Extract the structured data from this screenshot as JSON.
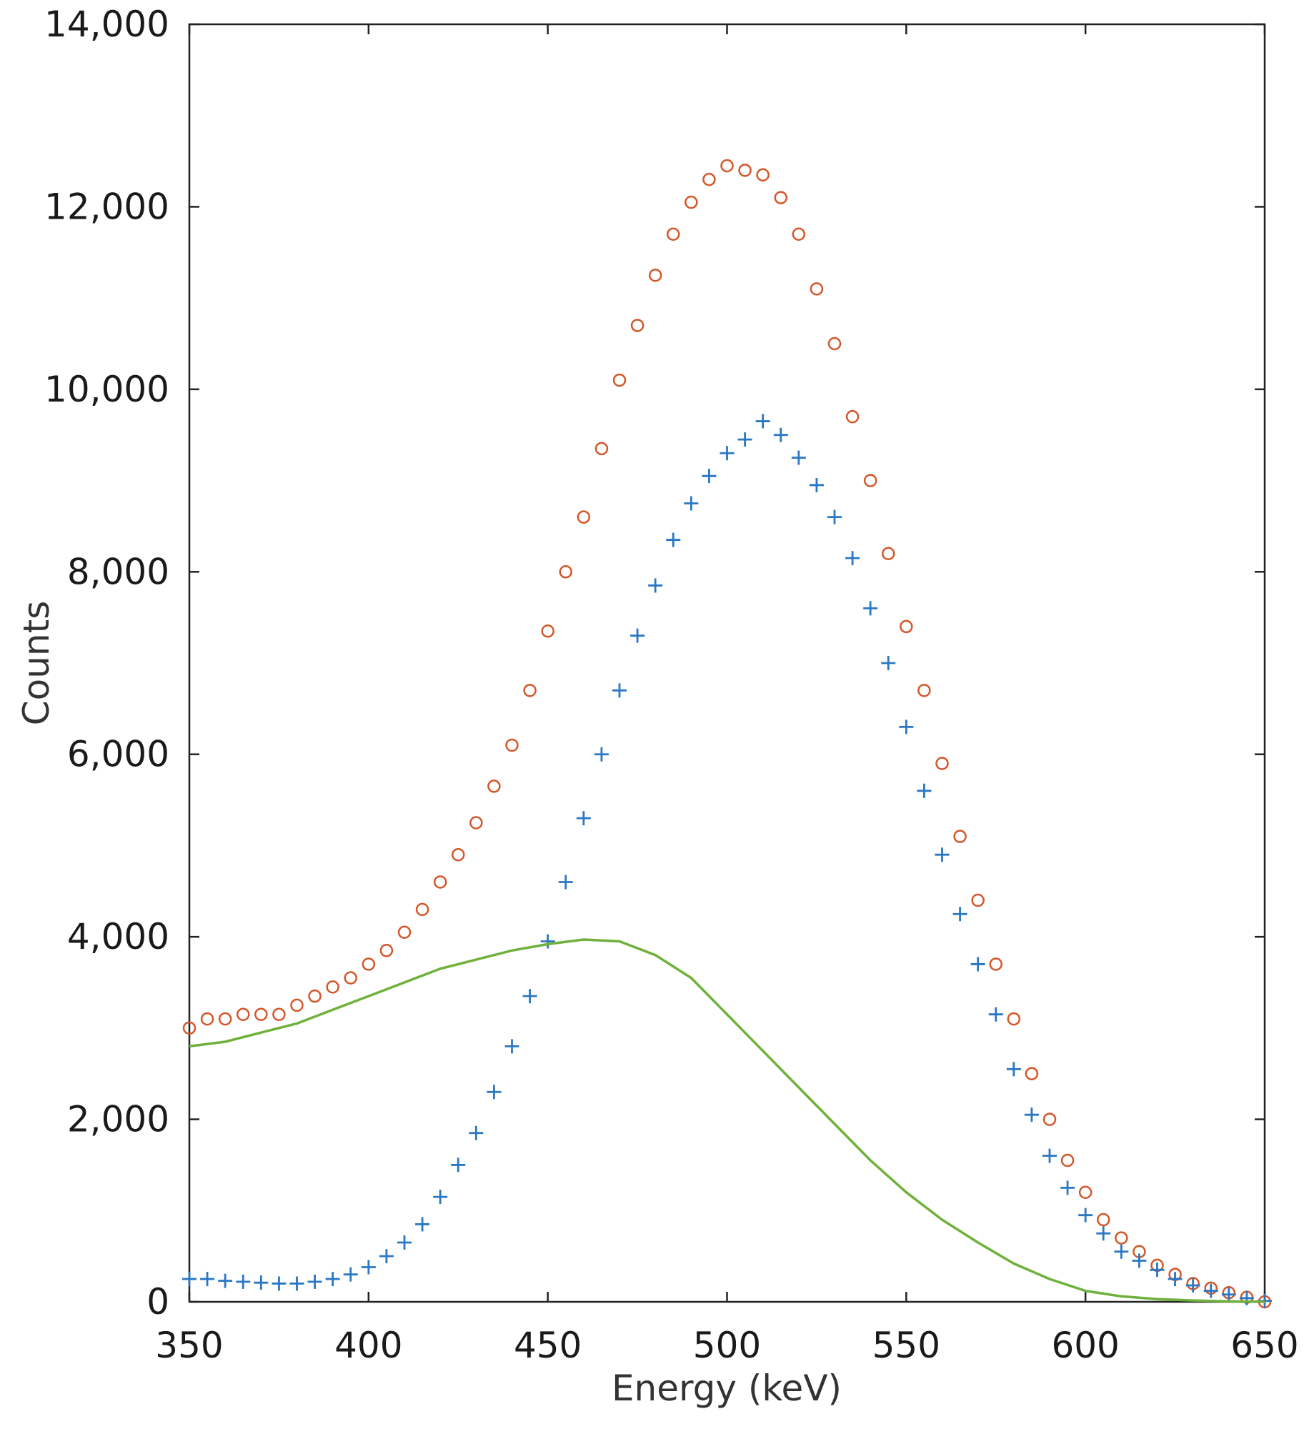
{
  "chart_data": {
    "type": "scatter",
    "title": "",
    "xlabel": "Energy (keV)",
    "ylabel": "Counts",
    "xlim": [
      350,
      650
    ],
    "ylim": [
      0,
      14000
    ],
    "xticks": [
      350,
      400,
      450,
      500,
      550,
      600,
      650
    ],
    "xtick_labels": [
      "350",
      "400",
      "450",
      "500",
      "550",
      "600",
      "650"
    ],
    "yticks": [
      0,
      2000,
      4000,
      6000,
      8000,
      10000,
      12000,
      14000
    ],
    "ytick_labels": [
      "0",
      "2,000",
      "4,000",
      "6,000",
      "8,000",
      "10,000",
      "12,000",
      "14,000"
    ],
    "grid": false,
    "legend": "none",
    "series": [
      {
        "marker": "circle",
        "color": "#d4572a",
        "x": [
          350,
          355,
          360,
          365,
          370,
          375,
          380,
          385,
          390,
          395,
          400,
          405,
          410,
          415,
          420,
          425,
          430,
          435,
          440,
          445,
          450,
          455,
          460,
          465,
          470,
          475,
          480,
          485,
          490,
          495,
          500,
          505,
          510,
          515,
          520,
          525,
          530,
          535,
          540,
          545,
          550,
          555,
          560,
          565,
          570,
          575,
          580,
          585,
          590,
          595,
          600,
          605,
          610,
          615,
          620,
          625,
          630,
          635,
          640,
          645,
          650
        ],
        "y": [
          3000,
          3100,
          3100,
          3150,
          3150,
          3150,
          3250,
          3350,
          3450,
          3550,
          3700,
          3850,
          4050,
          4300,
          4600,
          4900,
          5250,
          5650,
          6100,
          6700,
          7350,
          8000,
          8600,
          9350,
          10100,
          10700,
          11250,
          11700,
          12050,
          12300,
          12450,
          12400,
          12350,
          12100,
          11700,
          11100,
          10500,
          9700,
          9000,
          8200,
          7400,
          6700,
          5900,
          5100,
          4400,
          3700,
          3100,
          2500,
          2000,
          1550,
          1200,
          900,
          700,
          550,
          400,
          300,
          200,
          150,
          100,
          50,
          0
        ]
      },
      {
        "marker": "plus",
        "color": "#2a77c4",
        "x": [
          350,
          355,
          360,
          365,
          370,
          375,
          380,
          385,
          390,
          395,
          400,
          405,
          410,
          415,
          420,
          425,
          430,
          435,
          440,
          445,
          450,
          455,
          460,
          465,
          470,
          475,
          480,
          485,
          490,
          495,
          500,
          505,
          510,
          515,
          520,
          525,
          530,
          535,
          540,
          545,
          550,
          555,
          560,
          565,
          570,
          575,
          580,
          585,
          590,
          595,
          600,
          605,
          610,
          615,
          620,
          625,
          630,
          635,
          640,
          645,
          650
        ],
        "y": [
          250,
          250,
          230,
          220,
          210,
          200,
          200,
          220,
          250,
          300,
          380,
          500,
          650,
          850,
          1150,
          1500,
          1850,
          2300,
          2800,
          3350,
          3950,
          4600,
          5300,
          6000,
          6700,
          7300,
          7850,
          8350,
          8750,
          9050,
          9300,
          9450,
          9650,
          9500,
          9250,
          8950,
          8600,
          8150,
          7600,
          7000,
          6300,
          5600,
          4900,
          4250,
          3700,
          3150,
          2550,
          2050,
          1600,
          1250,
          950,
          750,
          550,
          450,
          350,
          250,
          180,
          120,
          80,
          40,
          10
        ]
      },
      {
        "marker": "line",
        "color": "#6fb13a",
        "x": [
          350,
          360,
          370,
          380,
          390,
          400,
          410,
          420,
          430,
          440,
          450,
          460,
          470,
          480,
          490,
          500,
          510,
          520,
          530,
          540,
          550,
          560,
          570,
          580,
          590,
          600,
          610,
          620,
          630,
          640,
          650
        ],
        "y": [
          2800,
          2850,
          2950,
          3050,
          3200,
          3350,
          3500,
          3650,
          3750,
          3850,
          3920,
          3970,
          3950,
          3800,
          3550,
          3150,
          2750,
          2350,
          1950,
          1550,
          1200,
          900,
          650,
          420,
          250,
          120,
          60,
          30,
          15,
          5,
          0
        ]
      }
    ]
  }
}
